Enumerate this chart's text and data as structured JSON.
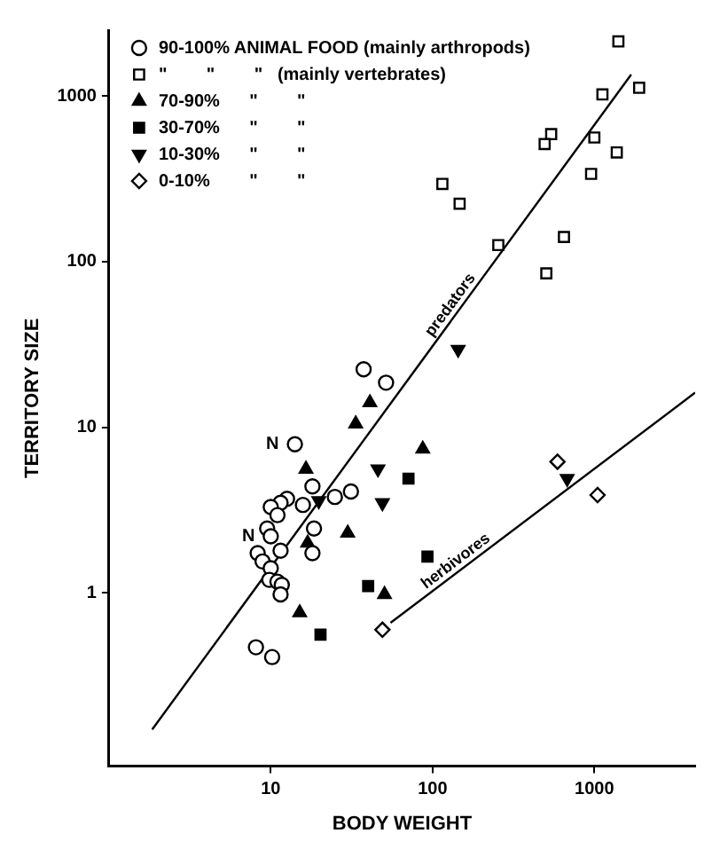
{
  "chart_data": {
    "type": "scatter",
    "xlabel": "BODY WEIGHT",
    "ylabel": "TERRITORY SIZE",
    "log": "xy",
    "xlim": [
      1,
      4200
    ],
    "ylim": [
      0.09,
      2500
    ],
    "xticks": [
      10,
      100,
      1000
    ],
    "yticks": [
      1,
      10,
      100,
      1000
    ],
    "grid": false,
    "legend": "top left",
    "series": [
      {
        "name": "90-100% ANIMAL FOOD (mainly arthropods)",
        "marker": "circle",
        "color": "#ffffff",
        "x": [
          37.5,
          51.6,
          14.1,
          18.1,
          12.6,
          11.5,
          10,
          15.8,
          24.9,
          31.3,
          11,
          9.5,
          10,
          18.5,
          11.5,
          18.1,
          8.3,
          8.9,
          10,
          9.8,
          11,
          11.7,
          11.5,
          8.1,
          10.2
        ],
        "values": [
          22.4,
          18.6,
          7.9,
          4.4,
          3.7,
          3.5,
          3.3,
          3.4,
          3.8,
          4.1,
          2.95,
          2.45,
          2.2,
          2.45,
          1.8,
          1.74,
          1.74,
          1.55,
          1.41,
          1.2,
          1.17,
          1.12,
          0.98,
          0.47,
          0.41
        ]
      },
      {
        "name": "\"        \"        \"   (mainly vertebrates)",
        "marker": "square",
        "color": "#ffffff",
        "x": [
          1408,
          1892,
          1122,
          541,
          493,
          1000,
          1376,
          955,
          115,
          147,
          255,
          649,
          505
        ],
        "values": [
          2138,
          1122,
          1023,
          589,
          513,
          562,
          457,
          339,
          295,
          224,
          126,
          141,
          85
        ]
      },
      {
        "name": "70-90%      \"        \"",
        "marker": "triangle",
        "color": "#000000",
        "x": [
          41,
          33.5,
          16.5,
          29.9,
          16.9,
          50.5,
          15.1,
          87
        ],
        "values": [
          14.1,
          10.5,
          5.6,
          2.3,
          2.0,
          0.98,
          0.76,
          7.4
        ]
      },
      {
        "name": "30-70%      \"        \"",
        "marker": "square",
        "color": "#000000",
        "x": [
          40,
          20.3,
          71,
          93
        ],
        "values": [
          1.1,
          0.56,
          4.9,
          1.66
        ]
      },
      {
        "name": "10-30%      \"        \"",
        "marker": "triangle-down",
        "color": "#000000",
        "x": [
          144,
          46,
          49,
          679,
          19.8
        ],
        "values": [
          29.5,
          5.6,
          3.5,
          4.9,
          3.6
        ]
      },
      {
        "name": "0-10%        \"        \"",
        "marker": "diamond",
        "color": "#ffffff",
        "x": [
          592,
          1047,
          49
        ],
        "values": [
          6.2,
          3.9,
          0.6
        ]
      },
      {
        "name": "predators",
        "type": "line",
        "color": "#000000",
        "marker": "none",
        "x": [
          1.85,
          1690
        ],
        "values": [
          0.15,
          1349
        ]
      },
      {
        "name": "herbivores",
        "type": "line",
        "color": "#000000",
        "marker": "none",
        "x": [
          55,
          4200
        ],
        "values": [
          0.66,
          16.2
        ]
      }
    ],
    "annotations": [
      {
        "text": "N",
        "x": 14.1,
        "y": 7.9
      },
      {
        "text": "N",
        "x": 10,
        "y": 2.2
      }
    ]
  }
}
